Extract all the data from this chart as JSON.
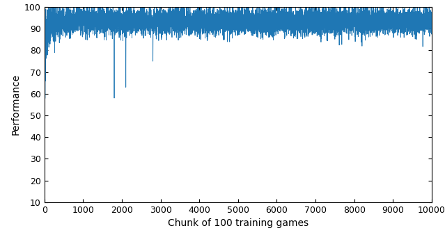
{
  "title": "",
  "xlabel": "Chunk of 100 training games",
  "ylabel": "Performance",
  "xlim": [
    0,
    10000
  ],
  "ylim": [
    10,
    100
  ],
  "yticks": [
    10,
    20,
    30,
    40,
    50,
    60,
    70,
    80,
    90,
    100
  ],
  "xticks": [
    0,
    1000,
    2000,
    3000,
    4000,
    5000,
    6000,
    7000,
    8000,
    9000,
    10000
  ],
  "line_color": "#1f77b4",
  "line_width": 0.6,
  "n_points": 10000,
  "seed": 42,
  "background_color": "#ffffff",
  "figsize": [
    6.39,
    3.38
  ],
  "dpi": 100
}
